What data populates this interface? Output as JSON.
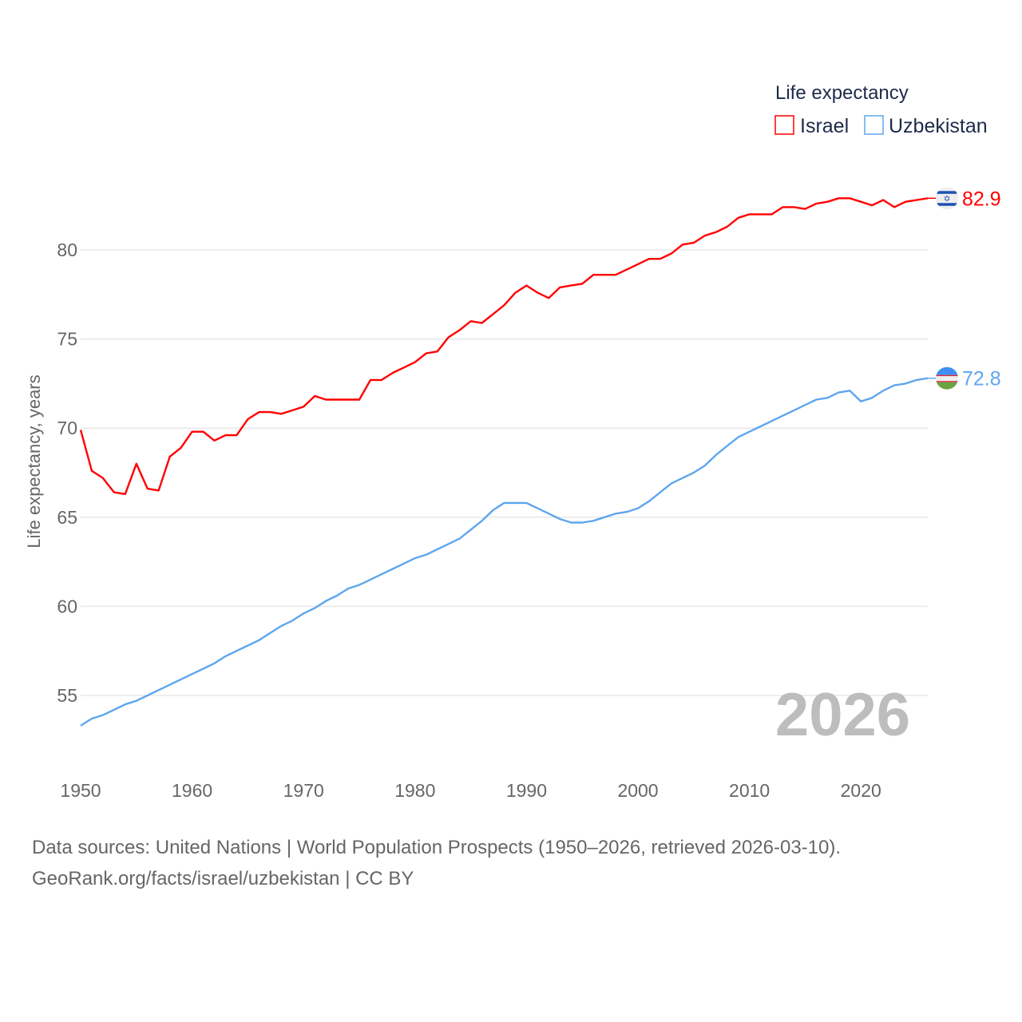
{
  "chart_data": {
    "type": "line",
    "title": "",
    "xlabel": "",
    "ylabel": "Life expectancy, years",
    "xlim": [
      1950,
      2026
    ],
    "ylim": [
      52.5,
      85
    ],
    "xticks": [
      1950,
      1960,
      1970,
      1980,
      1990,
      2000,
      2010,
      2020
    ],
    "yticks": [
      55,
      60,
      65,
      70,
      75,
      80
    ],
    "grid": true,
    "legend_title": "Life expectancy",
    "legend_position": "top-right",
    "year_label": "2026",
    "x": [
      1950,
      1951,
      1952,
      1953,
      1954,
      1955,
      1956,
      1957,
      1958,
      1959,
      1960,
      1961,
      1962,
      1963,
      1964,
      1965,
      1966,
      1967,
      1968,
      1969,
      1970,
      1971,
      1972,
      1973,
      1974,
      1975,
      1976,
      1977,
      1978,
      1979,
      1980,
      1981,
      1982,
      1983,
      1984,
      1985,
      1986,
      1987,
      1988,
      1989,
      1990,
      1991,
      1992,
      1993,
      1994,
      1995,
      1996,
      1997,
      1998,
      1999,
      2000,
      2001,
      2002,
      2003,
      2004,
      2005,
      2006,
      2007,
      2008,
      2009,
      2010,
      2011,
      2012,
      2013,
      2014,
      2015,
      2016,
      2017,
      2018,
      2019,
      2020,
      2021,
      2022,
      2023,
      2024,
      2025,
      2026
    ],
    "series": [
      {
        "name": "Israel",
        "color": "#ff0000",
        "end_label": "82.9",
        "flag": "israel-flag",
        "values": [
          69.9,
          67.6,
          67.2,
          66.4,
          66.3,
          68.0,
          66.6,
          66.5,
          68.4,
          68.9,
          69.8,
          69.8,
          69.3,
          69.6,
          69.6,
          70.5,
          70.9,
          70.9,
          70.8,
          71.0,
          71.2,
          71.8,
          71.6,
          71.6,
          71.6,
          71.6,
          72.7,
          72.7,
          73.1,
          73.4,
          73.7,
          74.2,
          74.3,
          75.1,
          75.5,
          76.0,
          75.9,
          76.4,
          76.9,
          77.6,
          78.0,
          77.6,
          77.3,
          77.9,
          78.0,
          78.1,
          78.6,
          78.6,
          78.6,
          78.9,
          79.2,
          79.5,
          79.5,
          79.8,
          80.3,
          80.4,
          80.8,
          81.0,
          81.3,
          81.8,
          82.0,
          82.0,
          82.0,
          82.4,
          82.4,
          82.3,
          82.6,
          82.7,
          82.9,
          82.9,
          82.7,
          82.5,
          82.8,
          82.4,
          82.7,
          82.8,
          82.9
        ]
      },
      {
        "name": "Uzbekistan",
        "color": "#5ea6ee",
        "end_label": "72.8",
        "flag": "uzbekistan-flag",
        "values": [
          53.3,
          53.7,
          53.9,
          54.2,
          54.5,
          54.7,
          55.0,
          55.3,
          55.6,
          55.9,
          56.2,
          56.5,
          56.8,
          57.2,
          57.5,
          57.8,
          58.1,
          58.5,
          58.9,
          59.2,
          59.6,
          59.9,
          60.3,
          60.6,
          61.0,
          61.2,
          61.5,
          61.8,
          62.1,
          62.4,
          62.7,
          62.9,
          63.2,
          63.5,
          63.8,
          64.3,
          64.8,
          65.4,
          65.8,
          65.8,
          65.8,
          65.5,
          65.2,
          64.9,
          64.7,
          64.7,
          64.8,
          65.0,
          65.2,
          65.3,
          65.5,
          65.9,
          66.4,
          66.9,
          67.2,
          67.5,
          67.9,
          68.5,
          69.0,
          69.5,
          69.8,
          70.1,
          70.4,
          70.7,
          71.0,
          71.3,
          71.6,
          71.7,
          72.0,
          72.1,
          71.5,
          71.7,
          72.1,
          72.4,
          72.5,
          72.7,
          72.8
        ]
      }
    ]
  },
  "footer": {
    "line1": "Data sources: United Nations | World Population Prospects (1950–2026, retrieved 2026-03-10).",
    "line2": "GeoRank.org/facts/israel/uzbekistan | CC BY"
  }
}
